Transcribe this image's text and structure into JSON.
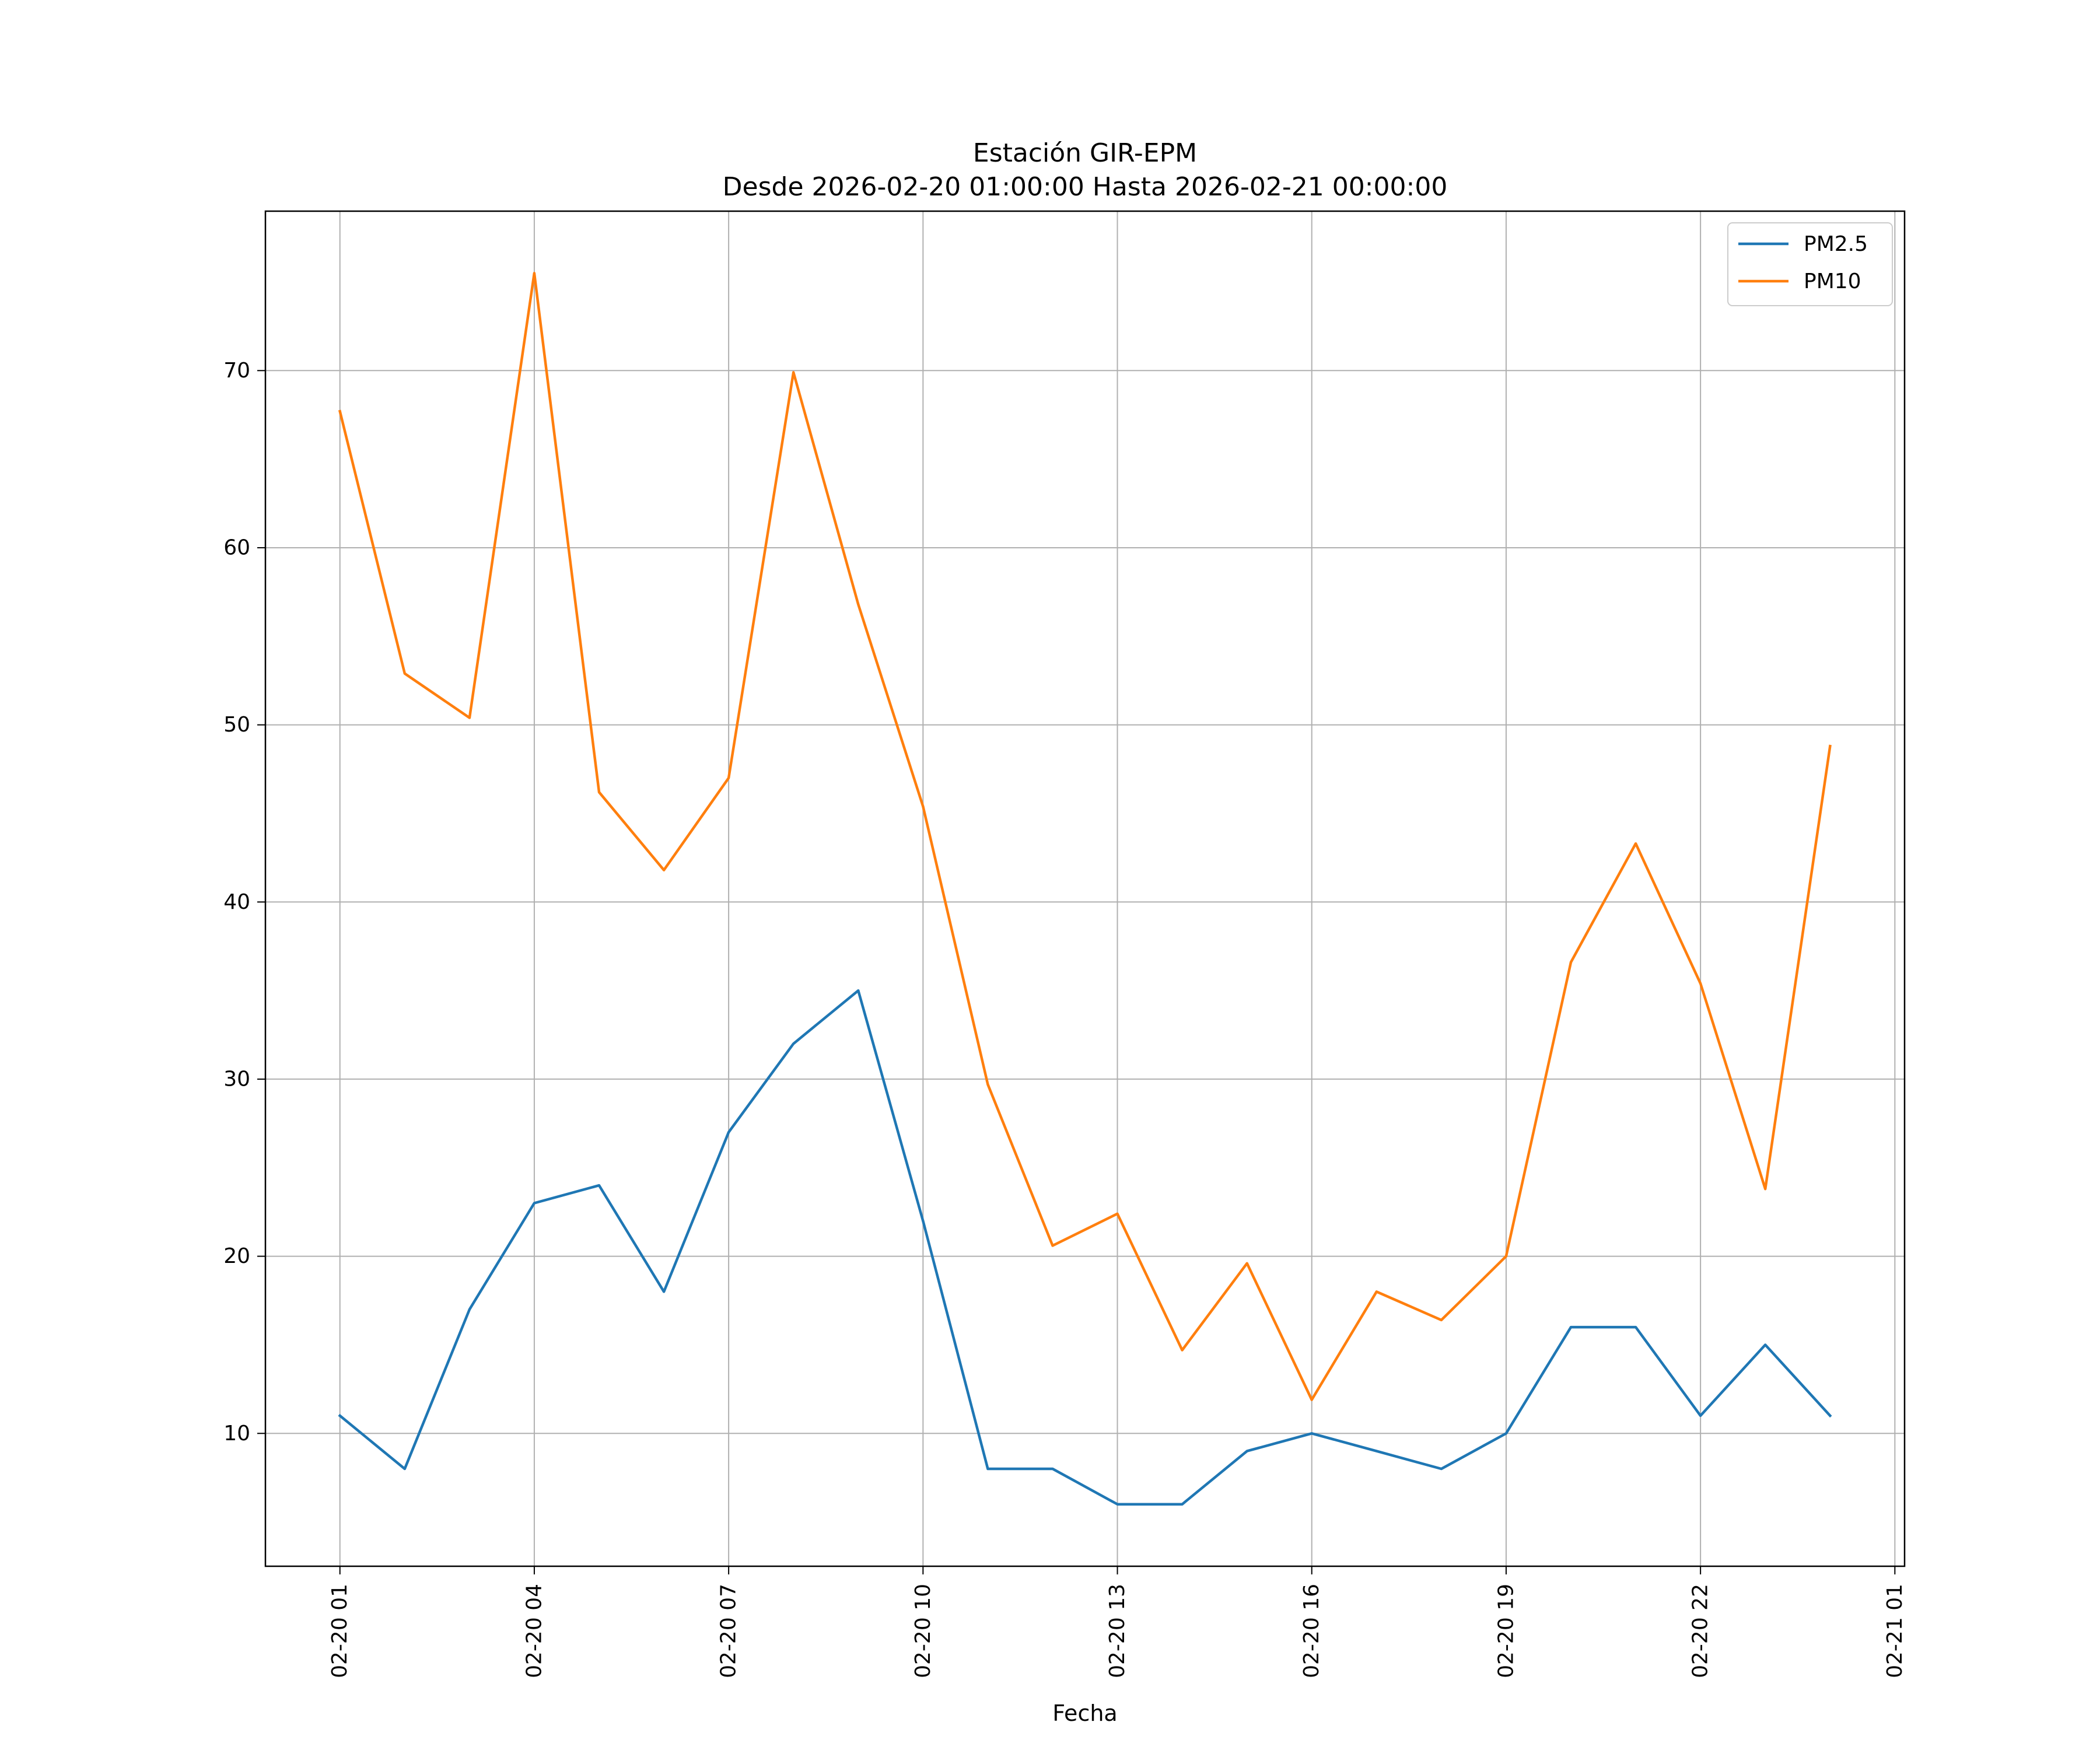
{
  "chart_data": {
    "type": "line",
    "title": "Estación GIR-EPM",
    "subtitle": "Desde 2026-02-20 01:00:00 Hasta 2026-02-21 00:00:00",
    "xlabel": "Fecha",
    "ylabel": "",
    "x": [
      "2026-02-20 01:00",
      "2026-02-20 02:00",
      "2026-02-20 03:00",
      "2026-02-20 04:00",
      "2026-02-20 05:00",
      "2026-02-20 06:00",
      "2026-02-20 07:00",
      "2026-02-20 08:00",
      "2026-02-20 09:00",
      "2026-02-20 10:00",
      "2026-02-20 11:00",
      "2026-02-20 12:00",
      "2026-02-20 13:00",
      "2026-02-20 14:00",
      "2026-02-20 15:00",
      "2026-02-20 16:00",
      "2026-02-20 17:00",
      "2026-02-20 18:00",
      "2026-02-20 19:00",
      "2026-02-20 20:00",
      "2026-02-20 21:00",
      "2026-02-20 22:00",
      "2026-02-20 23:00",
      "2026-02-21 00:00"
    ],
    "x_hours": [
      1,
      2,
      3,
      4,
      5,
      6,
      7,
      8,
      9,
      10,
      11,
      12,
      13,
      14,
      15,
      16,
      17,
      18,
      19,
      20,
      21,
      22,
      23,
      24
    ],
    "xlim_hours": [
      -0.15,
      25.15
    ],
    "x_ticks": [
      {
        "hour": 1,
        "label": "02-20 01"
      },
      {
        "hour": 4,
        "label": "02-20 04"
      },
      {
        "hour": 7,
        "label": "02-20 07"
      },
      {
        "hour": 10,
        "label": "02-20 10"
      },
      {
        "hour": 13,
        "label": "02-20 13"
      },
      {
        "hour": 16,
        "label": "02-20 16"
      },
      {
        "hour": 19,
        "label": "02-20 19"
      },
      {
        "hour": 22,
        "label": "02-20 22"
      },
      {
        "hour": 25,
        "label": "02-21 01"
      }
    ],
    "ylim": [
      2.5,
      79.0
    ],
    "y_ticks": [
      10,
      20,
      30,
      40,
      50,
      60,
      70
    ],
    "grid": true,
    "legend_position": "top-right",
    "series": [
      {
        "name": "PM2.5",
        "color": "#1f77b4",
        "values": [
          11,
          8,
          17,
          23,
          24,
          18,
          27,
          32,
          35,
          22,
          8,
          8,
          6,
          6,
          9,
          10,
          9,
          8,
          10,
          16,
          16,
          11,
          15,
          11
        ]
      },
      {
        "name": "PM10",
        "color": "#ff7f0e",
        "values": [
          67.7,
          52.9,
          50.4,
          75.5,
          46.2,
          41.8,
          47.0,
          69.9,
          56.8,
          45.4,
          29.7,
          20.6,
          22.4,
          14.7,
          19.6,
          11.9,
          18.0,
          16.4,
          20.0,
          36.6,
          43.3,
          35.4,
          23.8,
          48.8
        ]
      }
    ]
  }
}
